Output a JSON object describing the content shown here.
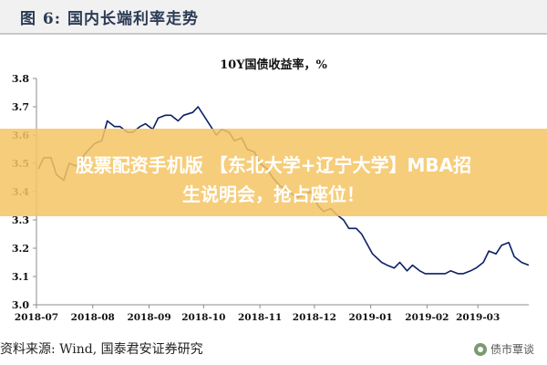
{
  "figure": {
    "title": "图 6: 国内长端利率走势",
    "source": "资料来源: Wind, 国泰君安证券研究",
    "watermark": "债市覃谈"
  },
  "banner": {
    "line1": "股票配资手机版 【东北大学+辽宁大学】MBA招",
    "line2": "生说明会，抢占座位！"
  },
  "colors": {
    "line": "#0b1f66",
    "axis": "#8c8c8c",
    "header_bg": "#f1f1f1",
    "banner": "#f5c564"
  },
  "chart_data": {
    "type": "line",
    "title": "10Y国债收益率，%",
    "xlabel": "",
    "ylabel": "",
    "ylim": [
      3.0,
      3.8
    ],
    "y_ticks": [
      "3.0",
      "3.1",
      "3.2",
      "3.3",
      "3.4",
      "3.5",
      "3.6",
      "3.7",
      "3.8"
    ],
    "x_tick_labels": [
      "2018-07",
      "2018-08",
      "2018-09",
      "2018-10",
      "2018-11",
      "2018-12",
      "2019-01",
      "2019-02",
      "2019-03"
    ],
    "grid": false,
    "series": [
      {
        "name": "",
        "x": [
          "2018-07-02",
          "2018-07-05",
          "2018-07-09",
          "2018-07-12",
          "2018-07-16",
          "2018-07-19",
          "2018-07-23",
          "2018-07-26",
          "2018-07-30",
          "2018-08-02",
          "2018-08-06",
          "2018-08-09",
          "2018-08-13",
          "2018-08-16",
          "2018-08-20",
          "2018-08-23",
          "2018-08-27",
          "2018-08-30",
          "2018-09-03",
          "2018-09-06",
          "2018-09-10",
          "2018-09-13",
          "2018-09-17",
          "2018-09-20",
          "2018-09-25",
          "2018-09-28",
          "2018-10-08",
          "2018-10-11",
          "2018-10-15",
          "2018-10-18",
          "2018-10-22",
          "2018-10-25",
          "2018-10-29",
          "2018-11-01",
          "2018-11-05",
          "2018-11-08",
          "2018-11-12",
          "2018-11-15",
          "2018-11-19",
          "2018-11-22",
          "2018-11-26",
          "2018-11-29",
          "2018-12-03",
          "2018-12-06",
          "2018-12-10",
          "2018-12-13",
          "2018-12-17",
          "2018-12-20",
          "2018-12-24",
          "2018-12-27",
          "2019-01-02",
          "2019-01-07",
          "2019-01-10",
          "2019-01-14",
          "2019-01-17",
          "2019-01-21",
          "2019-01-24",
          "2019-01-28",
          "2019-01-31",
          "2019-02-11",
          "2019-02-14",
          "2019-02-18",
          "2019-02-21",
          "2019-02-25",
          "2019-02-28",
          "2019-03-04",
          "2019-03-07",
          "2019-03-11",
          "2019-03-14",
          "2019-03-18",
          "2019-03-21",
          "2019-03-25",
          "2019-03-29"
        ],
        "values": [
          3.48,
          3.52,
          3.52,
          3.46,
          3.44,
          3.5,
          3.49,
          3.52,
          3.55,
          3.57,
          3.58,
          3.65,
          3.63,
          3.63,
          3.61,
          3.61,
          3.63,
          3.64,
          3.62,
          3.66,
          3.67,
          3.67,
          3.65,
          3.67,
          3.68,
          3.7,
          3.6,
          3.62,
          3.61,
          3.58,
          3.59,
          3.55,
          3.54,
          3.5,
          3.48,
          3.45,
          3.42,
          3.41,
          3.39,
          3.38,
          3.39,
          3.4,
          3.35,
          3.33,
          3.34,
          3.32,
          3.3,
          3.27,
          3.27,
          3.25,
          3.18,
          3.15,
          3.14,
          3.13,
          3.15,
          3.12,
          3.14,
          3.12,
          3.11,
          3.11,
          3.12,
          3.11,
          3.11,
          3.12,
          3.13,
          3.15,
          3.19,
          3.18,
          3.21,
          3.22,
          3.17,
          3.15,
          3.14
        ]
      }
    ]
  }
}
